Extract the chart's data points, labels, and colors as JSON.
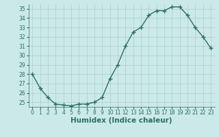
{
  "x": [
    0,
    1,
    2,
    3,
    4,
    5,
    6,
    7,
    8,
    9,
    10,
    11,
    12,
    13,
    14,
    15,
    16,
    17,
    18,
    19,
    20,
    21,
    22,
    23
  ],
  "y": [
    28.0,
    26.5,
    25.5,
    24.8,
    24.7,
    24.6,
    24.8,
    24.8,
    25.0,
    25.5,
    27.5,
    29.0,
    31.0,
    32.5,
    33.0,
    34.3,
    34.8,
    34.8,
    35.2,
    35.2,
    34.3,
    33.0,
    32.0,
    30.8
  ],
  "line_color": "#2a6e62",
  "marker": "+",
  "markersize": 4,
  "linewidth": 1.0,
  "xlabel": "Humidex (Indice chaleur)",
  "xlim": [
    -0.5,
    23.5
  ],
  "ylim": [
    24.5,
    35.5
  ],
  "yticks": [
    25,
    26,
    27,
    28,
    29,
    30,
    31,
    32,
    33,
    34,
    35
  ],
  "xticks": [
    0,
    1,
    2,
    3,
    4,
    5,
    6,
    7,
    8,
    9,
    10,
    11,
    12,
    13,
    14,
    15,
    16,
    17,
    18,
    19,
    20,
    21,
    22,
    23
  ],
  "bg_color": "#cce9e9",
  "grid_color": "#aacccc",
  "tick_fontsize": 5.5,
  "xlabel_fontsize": 7.5
}
